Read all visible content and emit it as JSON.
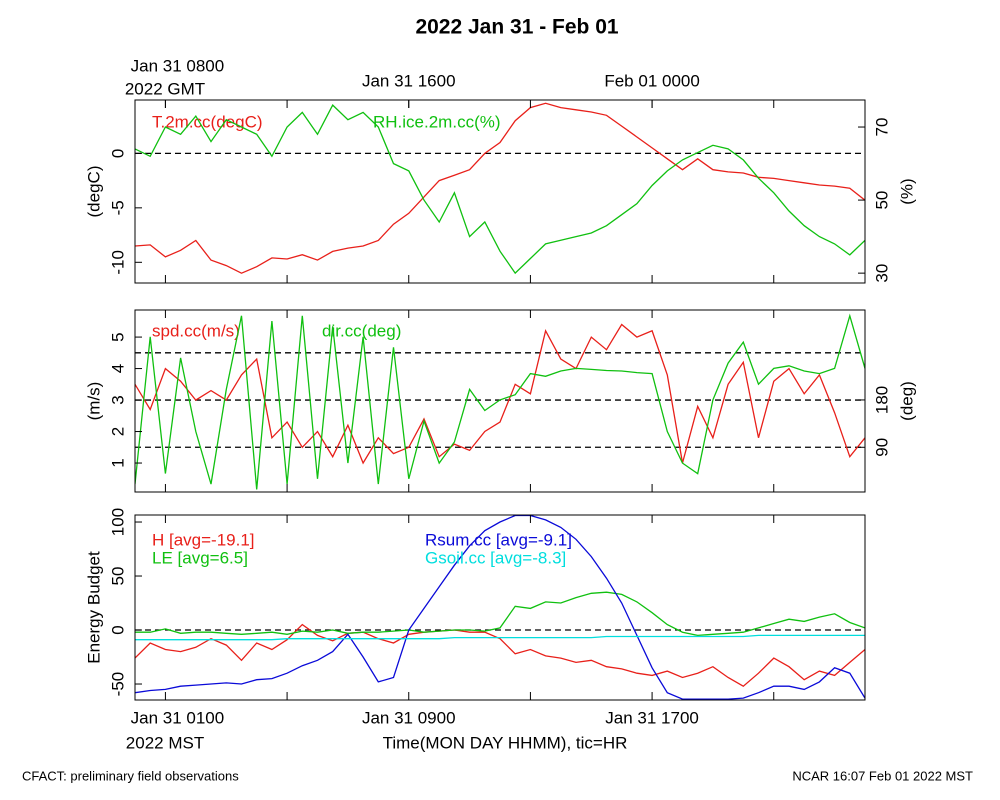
{
  "title": "2022 Jan 31 - Feb 01",
  "footer": {
    "left": "CFACT: preliminary field observations",
    "right": "NCAR 16:07 Feb 01 2022 MST"
  },
  "chart_data": [
    {
      "type": "line",
      "ylabel": "(degC)",
      "y2label": "(%)",
      "x": [
        0,
        0.5,
        1,
        1.5,
        2,
        2.5,
        3,
        3.5,
        4,
        4.5,
        5,
        5.5,
        6,
        6.5,
        7,
        7.5,
        8,
        8.5,
        9,
        9.5,
        10,
        10.5,
        11,
        11.5,
        12,
        12.5,
        13,
        13.5,
        14,
        14.5,
        15,
        15.5,
        16,
        16.5,
        17,
        17.5,
        18,
        18.5,
        19,
        19.5,
        20,
        20.5,
        21,
        21.5,
        22,
        22.5,
        23,
        23.5,
        24
      ],
      "xlim": [
        0,
        24
      ],
      "x2label": "2022 GMT",
      "x2ticks": [
        {
          "value": 1,
          "label": "Jan 31 0800"
        },
        {
          "value": 9,
          "label": "Jan 31 1600"
        },
        {
          "value": 17,
          "label": "Feb 01 0000"
        }
      ],
      "ylim": [
        -11.9,
        4.9
      ],
      "yticks": [
        -10,
        -5,
        0
      ],
      "y2lim": [
        27.3,
        77.4
      ],
      "y2ticks": [
        30,
        50,
        70
      ],
      "hlines": [
        0
      ],
      "series": [
        {
          "name": "T.2m.cc(degC)",
          "color": "#e8201a",
          "values": [
            -8.5,
            -8.4,
            -9.5,
            -8.9,
            -8,
            -9.8,
            -10.3,
            -11,
            -10.4,
            -9.6,
            -9.7,
            -9.3,
            -9.8,
            -9,
            -8.7,
            -8.5,
            -8,
            -6.5,
            -5.5,
            -4,
            -2.5,
            -2,
            -1.5,
            0,
            1,
            3,
            4.2,
            4.6,
            4.2,
            4,
            3.8,
            3.5,
            2.5,
            1.5,
            0.5,
            -0.5,
            -1.5,
            -0.5,
            -1.5,
            -1.7,
            -1.8,
            -2.2,
            -2.3,
            -2.5,
            -2.7,
            -2.9,
            -3,
            -3.2,
            -4.3
          ]
        },
        {
          "name": "RH.ice.2m.cc(%)",
          "color": "#10c010",
          "axis": "y2",
          "values": [
            64,
            62,
            70,
            68,
            73,
            66,
            72,
            70,
            68,
            62,
            70,
            74,
            68,
            76,
            72,
            74,
            70,
            60,
            58,
            50,
            44,
            52,
            40,
            44,
            36,
            30,
            34,
            38,
            39,
            40,
            41,
            43,
            46,
            49,
            54,
            58,
            61,
            63,
            65,
            64,
            61,
            56,
            52,
            47,
            43,
            40,
            38,
            35,
            39
          ]
        }
      ]
    },
    {
      "type": "line",
      "ylabel": "(m/s)",
      "y2label": "(deg)",
      "x": [
        0,
        0.5,
        1,
        1.5,
        2,
        2.5,
        3,
        3.5,
        4,
        4.5,
        5,
        5.5,
        6,
        6.5,
        7,
        7.5,
        8,
        8.5,
        9,
        9.5,
        10,
        10.5,
        11,
        11.5,
        12,
        12.5,
        13,
        13.5,
        14,
        14.5,
        15,
        15.5,
        16,
        16.5,
        17,
        17.5,
        18,
        18.5,
        19,
        19.5,
        20,
        20.5,
        21,
        21.5,
        22,
        22.5,
        23,
        23.5,
        24
      ],
      "xlim": [
        0,
        24
      ],
      "ylim": [
        0.08,
        5.86
      ],
      "yticks": [
        1,
        2,
        3,
        4,
        5
      ],
      "y2lim": [
        5,
        351
      ],
      "y2ticks": [
        90,
        180
      ],
      "hlines": [
        1.5,
        3,
        4.5
      ],
      "series": [
        {
          "name": "spd.cc(m/s)",
          "color": "#e8201a",
          "values": [
            3.5,
            2.7,
            4.0,
            3.6,
            3.0,
            3.3,
            3.0,
            3.8,
            4.3,
            1.8,
            2.3,
            1.5,
            2.0,
            1.2,
            2.2,
            1.0,
            1.8,
            1.3,
            1.5,
            2.4,
            1.2,
            1.6,
            1.4,
            2.0,
            2.3,
            3.5,
            3.2,
            5.2,
            4.3,
            4.0,
            5.0,
            4.6,
            5.4,
            5.0,
            5.2,
            3.8,
            1.0,
            2.8,
            1.8,
            3.5,
            4.2,
            1.8,
            3.6,
            4.0,
            3.2,
            3.8,
            2.6,
            1.2,
            1.8
          ]
        },
        {
          "name": "dir.cc(deg)",
          "color": "#10c010",
          "axis": "y2",
          "values": [
            20,
            300,
            40,
            260,
            120,
            20,
            200,
            340,
            10,
            330,
            20,
            340,
            30,
            320,
            60,
            300,
            20,
            280,
            30,
            140,
            60,
            100,
            200,
            160,
            180,
            190,
            230,
            225,
            235,
            240,
            238,
            236,
            235,
            232,
            230,
            120,
            60,
            40,
            180,
            250,
            290,
            210,
            240,
            245,
            235,
            230,
            240,
            340,
            240
          ]
        }
      ]
    },
    {
      "type": "line",
      "ylabel": "Energy Budget",
      "x": [
        0,
        0.5,
        1,
        1.5,
        2,
        2.5,
        3,
        3.5,
        4,
        4.5,
        5,
        5.5,
        6,
        6.5,
        7,
        7.5,
        8,
        8.5,
        9,
        9.5,
        10,
        10.5,
        11,
        11.5,
        12,
        12.5,
        13,
        13.5,
        14,
        14.5,
        15,
        15.5,
        16,
        16.5,
        17,
        17.5,
        18,
        18.5,
        19,
        19.5,
        20,
        20.5,
        21,
        21.5,
        22,
        22.5,
        23,
        23.5,
        24
      ],
      "xlim": [
        0,
        24
      ],
      "xticks": [
        {
          "value": 1,
          "label": "Jan 31 0100"
        },
        {
          "value": 9,
          "label": "Jan 31 0900"
        },
        {
          "value": 17,
          "label": "Jan 31 1700"
        }
      ],
      "xminorticks": [
        5,
        13,
        21
      ],
      "xlabel": "Time(MON DAY HHMM), tic=HR",
      "xzone": "2022 MST",
      "ylim": [
        -64.8,
        106.5
      ],
      "yticks": [
        -50,
        0,
        50,
        100
      ],
      "hlines": [
        0
      ],
      "series": [
        {
          "name": "H [avg=-19.1]",
          "color": "#e8201a",
          "values": [
            -26,
            -12,
            -18,
            -20,
            -16,
            -8,
            -14,
            -28,
            -12,
            -18,
            -9,
            5,
            -5,
            -10,
            -3,
            -2,
            -8,
            -12,
            -4,
            -2,
            -1,
            0,
            -2,
            -2,
            -8,
            -22,
            -18,
            -24,
            -26,
            -30,
            -28,
            -34,
            -36,
            -40,
            -42,
            -38,
            -44,
            -40,
            -34,
            -44,
            -52,
            -40,
            -26,
            -34,
            -46,
            -38,
            -42,
            -30,
            -18
          ]
        },
        {
          "name": "LE [avg=6.5]",
          "color": "#10c010",
          "values": [
            -2,
            -2,
            1,
            -3,
            -2,
            -2,
            -3,
            -4,
            -3,
            -2,
            -4,
            -1,
            -2,
            0,
            -3,
            -2,
            -2,
            -1,
            0,
            -2,
            -1,
            0,
            0,
            -1,
            2,
            22,
            20,
            26,
            25,
            30,
            34,
            35,
            33,
            26,
            16,
            5,
            -2,
            -5,
            -4,
            -3,
            -2,
            2,
            6,
            10,
            8,
            12,
            15,
            7,
            2
          ]
        },
        {
          "name": "Rsum.cc [avg=-9.1]",
          "color": "#0a0ad8",
          "values": [
            -58,
            -56,
            -55,
            -52,
            -51,
            -50,
            -49,
            -50,
            -46,
            -45,
            -40,
            -33,
            -28,
            -20,
            -4,
            -25,
            -48,
            -44,
            0,
            20,
            40,
            60,
            78,
            92,
            100,
            106,
            106,
            102,
            95,
            84,
            68,
            48,
            25,
            -5,
            -35,
            -58,
            -64,
            -64,
            -64,
            -64,
            -63,
            -58,
            -52,
            -52,
            -55,
            -48,
            -35,
            -40,
            -63
          ]
        },
        {
          "name": "Gsoil.cc [avg=-8.3]",
          "color": "#00dede",
          "values": [
            -9,
            -9,
            -9,
            -9,
            -9,
            -9,
            -9,
            -9,
            -9,
            -9,
            -8,
            -8,
            -8,
            -8,
            -8,
            -8,
            -8,
            -8,
            -8,
            -8,
            -8,
            -7,
            -7,
            -7,
            -7,
            -7,
            -7,
            -7,
            -7,
            -7,
            -7,
            -6,
            -6,
            -6,
            -6,
            -6,
            -6,
            -6,
            -6,
            -6,
            -6,
            -5,
            -5,
            -5,
            -5,
            -5,
            -5,
            -5,
            -5
          ]
        }
      ]
    }
  ]
}
